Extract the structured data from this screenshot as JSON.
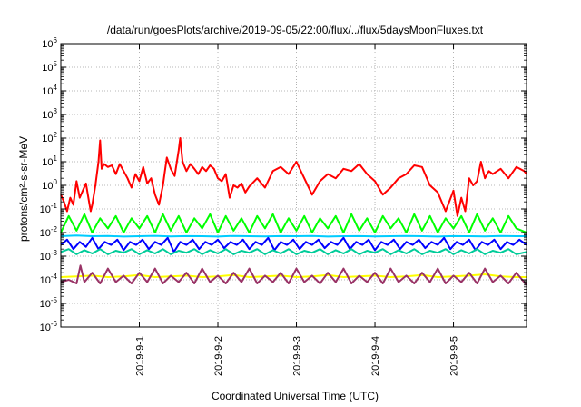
{
  "chart_data": {
    "type": "line",
    "title": "/data/run/goesPlots/archive/2019-09-05/22:00/flux/../flux/5daysMoonFluxes.txt",
    "xlabel": "Coordinated Universal Time (UTC)",
    "ylabel": "protons/cm²-s-sr-MeV",
    "yscale": "log",
    "ylim": [
      1e-06,
      1000000.0
    ],
    "xlim": [
      0,
      5.93
    ],
    "grid": true,
    "x_ticks": [
      {
        "label": "2019-9-1",
        "x": 1.0
      },
      {
        "label": "2019-9-2",
        "x": 2.0
      },
      {
        "label": "2019-9-3",
        "x": 3.0
      },
      {
        "label": "2019-9-4",
        "x": 4.0
      },
      {
        "label": "2019-9-5",
        "x": 5.0
      }
    ],
    "y_ticks": [
      {
        "base": "10",
        "exp": "-6",
        "value": 1e-06
      },
      {
        "base": "10",
        "exp": "-5",
        "value": 1e-05
      },
      {
        "base": "10",
        "exp": "-4",
        "value": 0.0001
      },
      {
        "base": "10",
        "exp": "-3",
        "value": 0.001
      },
      {
        "base": "10",
        "exp": "-2",
        "value": 0.01
      },
      {
        "base": "10",
        "exp": "-1",
        "value": 0.1
      },
      {
        "base": "10",
        "exp": "0",
        "value": 1
      },
      {
        "base": "10",
        "exp": "1",
        "value": 10
      },
      {
        "base": "10",
        "exp": "2",
        "value": 100
      },
      {
        "base": "10",
        "exp": "3",
        "value": 1000
      },
      {
        "base": "10",
        "exp": "4",
        "value": 10000
      },
      {
        "base": "10",
        "exp": "5",
        "value": 100000
      },
      {
        "base": "10",
        "exp": "6",
        "value": 1000000
      }
    ],
    "series": [
      {
        "color": "#ff0000",
        "x": [
          0.0,
          0.04,
          0.08,
          0.12,
          0.16,
          0.2,
          0.24,
          0.28,
          0.32,
          0.36,
          0.38,
          0.4,
          0.44,
          0.48,
          0.5,
          0.52,
          0.55,
          0.6,
          0.65,
          0.7,
          0.75,
          0.8,
          0.85,
          0.9,
          0.95,
          1.0,
          1.05,
          1.1,
          1.15,
          1.2,
          1.25,
          1.3,
          1.32,
          1.35,
          1.4,
          1.45,
          1.5,
          1.52,
          1.55,
          1.6,
          1.65,
          1.7,
          1.75,
          1.8,
          1.85,
          1.9,
          1.95,
          2.0,
          2.05,
          2.1,
          2.15,
          2.2,
          2.25,
          2.3,
          2.35,
          2.4,
          2.5,
          2.6,
          2.7,
          2.8,
          2.9,
          3.0,
          3.1,
          3.2,
          3.3,
          3.4,
          3.5,
          3.6,
          3.7,
          3.8,
          3.9,
          4.0,
          4.1,
          4.2,
          4.3,
          4.4,
          4.5,
          4.6,
          4.7,
          4.8,
          4.9,
          5.0,
          5.05,
          5.1,
          5.15,
          5.2,
          5.25,
          5.3,
          5.35,
          5.4,
          5.45,
          5.5,
          5.6,
          5.7,
          5.8,
          5.9,
          5.93
        ],
        "y": [
          0.4,
          0.2,
          0.08,
          0.3,
          0.15,
          1.5,
          0.3,
          0.6,
          1.2,
          0.2,
          0.08,
          0.15,
          1.0,
          10,
          80,
          5,
          8,
          6,
          7,
          3,
          8,
          4,
          2,
          0.8,
          3,
          1.5,
          6,
          1.2,
          2,
          0.4,
          0.15,
          1,
          3,
          15,
          5,
          2.5,
          30,
          100,
          10,
          4,
          8,
          5,
          3,
          6,
          4,
          7,
          5,
          2,
          1.5,
          3,
          0.3,
          1,
          0.8,
          1.2,
          0.5,
          0.9,
          2,
          0.8,
          4,
          6,
          3,
          10,
          2,
          0.4,
          1.5,
          3,
          2,
          5,
          4,
          8,
          3,
          1.5,
          0.4,
          0.8,
          2,
          3,
          7,
          6,
          1,
          0.5,
          0.08,
          0.6,
          0.05,
          0.3,
          0.08,
          2,
          1,
          1.5,
          10,
          2,
          4,
          3,
          5,
          2,
          6,
          4,
          3
        ]
      },
      {
        "color": "#00ff00",
        "x": [
          0.0,
          0.1,
          0.2,
          0.3,
          0.4,
          0.5,
          0.6,
          0.7,
          0.8,
          0.9,
          1.0,
          1.1,
          1.2,
          1.3,
          1.4,
          1.5,
          1.6,
          1.7,
          1.8,
          1.9,
          2.0,
          2.1,
          2.2,
          2.3,
          2.4,
          2.5,
          2.6,
          2.7,
          2.8,
          2.9,
          3.0,
          3.1,
          3.2,
          3.3,
          3.4,
          3.5,
          3.6,
          3.7,
          3.8,
          3.9,
          4.0,
          4.1,
          4.2,
          4.3,
          4.4,
          4.5,
          4.6,
          4.7,
          4.8,
          4.9,
          5.0,
          5.1,
          5.2,
          5.3,
          5.4,
          5.5,
          5.6,
          5.7,
          5.8,
          5.93
        ],
        "y": [
          0.01,
          0.05,
          0.012,
          0.06,
          0.01,
          0.04,
          0.015,
          0.05,
          0.01,
          0.04,
          0.015,
          0.05,
          0.01,
          0.06,
          0.012,
          0.05,
          0.01,
          0.04,
          0.015,
          0.06,
          0.01,
          0.05,
          0.012,
          0.04,
          0.01,
          0.05,
          0.015,
          0.06,
          0.01,
          0.04,
          0.012,
          0.05,
          0.01,
          0.04,
          0.015,
          0.05,
          0.01,
          0.06,
          0.012,
          0.04,
          0.01,
          0.05,
          0.015,
          0.04,
          0.01,
          0.06,
          0.012,
          0.05,
          0.01,
          0.04,
          0.015,
          0.05,
          0.01,
          0.06,
          0.012,
          0.04,
          0.01,
          0.05,
          0.015,
          0.01
        ]
      },
      {
        "color": "#00ccff",
        "x": [
          0.0,
          0.2,
          0.4,
          0.6,
          0.8,
          1.0,
          1.2,
          1.4,
          1.6,
          1.8,
          2.0,
          2.2,
          2.4,
          2.6,
          2.8,
          3.0,
          3.2,
          3.4,
          3.6,
          3.8,
          4.0,
          4.2,
          4.4,
          4.6,
          4.8,
          5.0,
          5.2,
          5.4,
          5.6,
          5.8,
          5.93
        ],
        "y": [
          0.007,
          0.0075,
          0.007,
          0.0072,
          0.0068,
          0.007,
          0.0073,
          0.0069,
          0.0071,
          0.007,
          0.0068,
          0.0072,
          0.007,
          0.0069,
          0.0071,
          0.007,
          0.0072,
          0.0068,
          0.007,
          0.0071,
          0.0069,
          0.007,
          0.0072,
          0.007,
          0.0068,
          0.0071,
          0.007,
          0.0069,
          0.0072,
          0.007,
          0.007
        ]
      },
      {
        "color": "#0000ff",
        "x": [
          0.0,
          0.08,
          0.16,
          0.24,
          0.32,
          0.4,
          0.48,
          0.56,
          0.64,
          0.72,
          0.8,
          0.88,
          0.96,
          1.04,
          1.12,
          1.2,
          1.28,
          1.36,
          1.44,
          1.52,
          1.6,
          1.68,
          1.76,
          1.84,
          1.92,
          2.0,
          2.08,
          2.16,
          2.24,
          2.32,
          2.4,
          2.48,
          2.56,
          2.64,
          2.72,
          2.8,
          2.88,
          2.96,
          3.04,
          3.12,
          3.2,
          3.28,
          3.36,
          3.44,
          3.52,
          3.6,
          3.68,
          3.76,
          3.84,
          3.92,
          4.0,
          4.08,
          4.16,
          4.24,
          4.32,
          4.4,
          4.48,
          4.56,
          4.64,
          4.72,
          4.8,
          4.88,
          4.96,
          5.04,
          5.12,
          5.2,
          5.28,
          5.36,
          5.44,
          5.52,
          5.6,
          5.68,
          5.76,
          5.84,
          5.93
        ],
        "y": [
          0.003,
          0.005,
          0.002,
          0.004,
          0.0025,
          0.006,
          0.002,
          0.004,
          0.003,
          0.005,
          0.0018,
          0.004,
          0.003,
          0.005,
          0.002,
          0.004,
          0.003,
          0.006,
          0.0015,
          0.004,
          0.003,
          0.005,
          0.002,
          0.004,
          0.003,
          0.005,
          0.0022,
          0.004,
          0.003,
          0.005,
          0.002,
          0.004,
          0.003,
          0.006,
          0.0018,
          0.004,
          0.003,
          0.005,
          0.002,
          0.004,
          0.003,
          0.005,
          0.0022,
          0.004,
          0.003,
          0.006,
          0.002,
          0.004,
          0.003,
          0.005,
          0.0018,
          0.004,
          0.003,
          0.005,
          0.002,
          0.004,
          0.003,
          0.005,
          0.0022,
          0.004,
          0.003,
          0.006,
          0.002,
          0.004,
          0.003,
          0.005,
          0.0018,
          0.004,
          0.003,
          0.005,
          0.002,
          0.004,
          0.003,
          0.005,
          0.003
        ]
      },
      {
        "color": "#00cc99",
        "x": [
          0.0,
          0.1,
          0.2,
          0.3,
          0.4,
          0.5,
          0.6,
          0.7,
          0.8,
          0.9,
          1.0,
          1.1,
          1.2,
          1.3,
          1.4,
          1.5,
          1.6,
          1.7,
          1.8,
          1.9,
          2.0,
          2.1,
          2.2,
          2.3,
          2.4,
          2.5,
          2.6,
          2.7,
          2.8,
          2.9,
          3.0,
          3.1,
          3.2,
          3.3,
          3.4,
          3.5,
          3.6,
          3.7,
          3.8,
          3.9,
          4.0,
          4.1,
          4.2,
          4.3,
          4.4,
          4.5,
          4.6,
          4.7,
          4.8,
          4.9,
          5.0,
          5.1,
          5.2,
          5.3,
          5.4,
          5.5,
          5.6,
          5.7,
          5.8,
          5.93
        ],
        "y": [
          0.0015,
          0.002,
          0.0012,
          0.0018,
          0.0013,
          0.002,
          0.0012,
          0.0017,
          0.0014,
          0.002,
          0.0012,
          0.0018,
          0.0013,
          0.002,
          0.0012,
          0.0017,
          0.0014,
          0.002,
          0.0012,
          0.0018,
          0.0013,
          0.002,
          0.0012,
          0.0017,
          0.0014,
          0.002,
          0.0012,
          0.0018,
          0.0013,
          0.002,
          0.0012,
          0.0017,
          0.0014,
          0.002,
          0.0012,
          0.0018,
          0.0013,
          0.002,
          0.0012,
          0.0017,
          0.0014,
          0.002,
          0.0012,
          0.0018,
          0.0013,
          0.002,
          0.0012,
          0.0017,
          0.0014,
          0.002,
          0.0012,
          0.0018,
          0.0013,
          0.002,
          0.0012,
          0.0017,
          0.0014,
          0.002,
          0.0012,
          0.0015
        ]
      },
      {
        "color": "#ffff00",
        "x": [
          0.0,
          0.2,
          0.4,
          0.6,
          0.8,
          1.0,
          1.2,
          1.4,
          1.6,
          1.8,
          2.0,
          2.2,
          2.4,
          2.6,
          2.8,
          3.0,
          3.2,
          3.4,
          3.6,
          3.8,
          4.0,
          4.2,
          4.4,
          4.6,
          4.8,
          5.0,
          5.2,
          5.4,
          5.6,
          5.8,
          5.93
        ],
        "y": [
          0.00013,
          0.00014,
          0.00015,
          0.00013,
          0.00014,
          0.00016,
          0.00013,
          0.00014,
          0.00015,
          0.00013,
          0.00014,
          0.00016,
          0.00013,
          0.00014,
          0.00015,
          0.00013,
          0.00014,
          0.00016,
          0.00013,
          0.00014,
          0.00015,
          0.00013,
          0.00014,
          0.00016,
          0.00013,
          0.00014,
          0.00015,
          0.00017,
          0.00014,
          0.00013,
          0.00013
        ]
      },
      {
        "color": "#993366",
        "x": [
          0.0,
          0.1,
          0.2,
          0.25,
          0.3,
          0.4,
          0.5,
          0.6,
          0.7,
          0.8,
          0.9,
          1.0,
          1.1,
          1.2,
          1.3,
          1.4,
          1.5,
          1.6,
          1.7,
          1.8,
          1.9,
          2.0,
          2.1,
          2.2,
          2.3,
          2.4,
          2.5,
          2.6,
          2.7,
          2.8,
          2.9,
          3.0,
          3.1,
          3.2,
          3.3,
          3.4,
          3.5,
          3.6,
          3.7,
          3.8,
          3.9,
          4.0,
          4.1,
          4.2,
          4.3,
          4.4,
          4.5,
          4.6,
          4.7,
          4.8,
          4.9,
          5.0,
          5.1,
          5.2,
          5.3,
          5.4,
          5.5,
          5.6,
          5.7,
          5.8,
          5.93
        ],
        "y": [
          8e-05,
          0.0001,
          7e-05,
          0.0004,
          8e-05,
          0.0002,
          7e-05,
          0.0003,
          8e-05,
          0.00015,
          7e-05,
          0.0002,
          8e-05,
          0.0003,
          7e-05,
          0.00015,
          8e-05,
          0.0002,
          7e-05,
          0.0003,
          8e-05,
          0.00015,
          7e-05,
          0.0002,
          8e-05,
          0.0003,
          7e-05,
          0.00015,
          8e-05,
          0.0002,
          7e-05,
          0.0003,
          8e-05,
          0.00015,
          7e-05,
          0.0002,
          8e-05,
          0.0003,
          7e-05,
          0.00015,
          8e-05,
          0.0002,
          7e-05,
          0.0003,
          8e-05,
          0.00015,
          7e-05,
          0.0002,
          8e-05,
          0.0003,
          7e-05,
          0.00015,
          8e-05,
          0.0002,
          7e-05,
          0.0003,
          8e-05,
          0.00015,
          7e-05,
          0.0002,
          6e-05
        ]
      }
    ]
  }
}
